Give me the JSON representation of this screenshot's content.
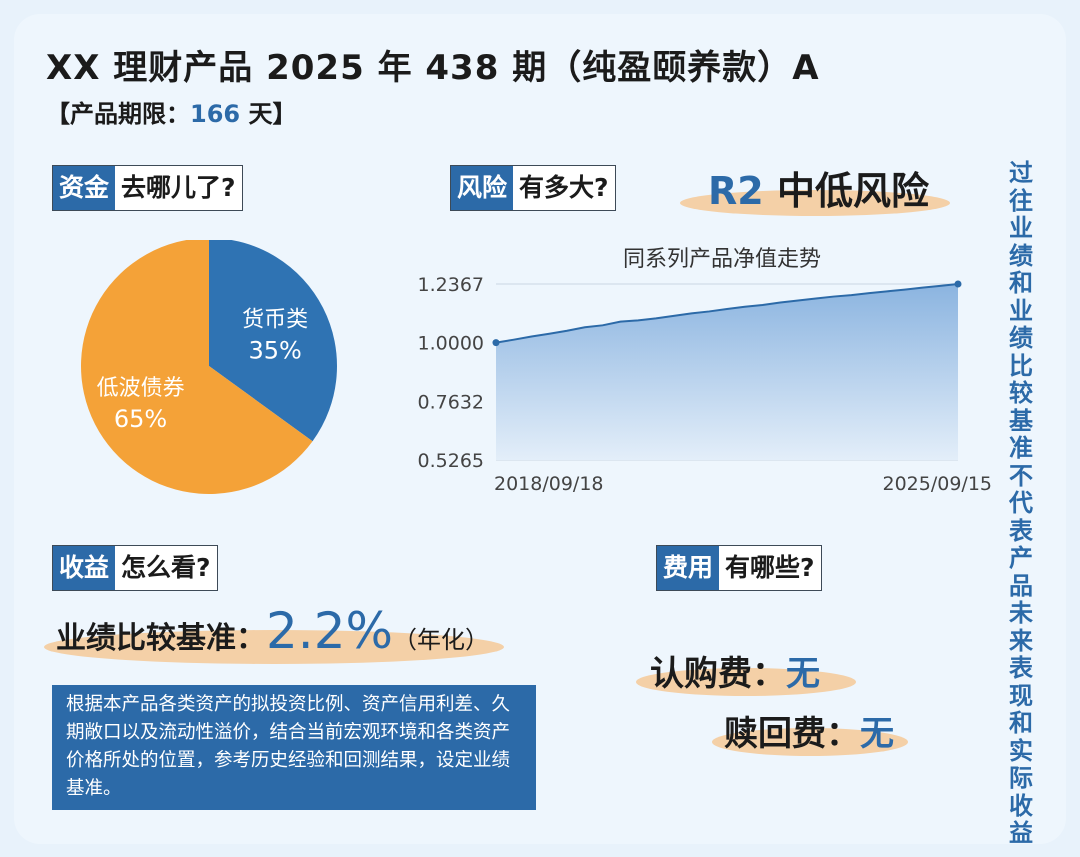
{
  "header": {
    "title": "XX 理财产品 2025 年 438 期（纯盈颐养款）A",
    "term_prefix": "【产品期限：",
    "term_value": "166",
    "term_suffix": "天】"
  },
  "sections": {
    "funds": {
      "tag": "资金",
      "question": "去哪儿了?"
    },
    "risk": {
      "tag": "风险",
      "question": "有多大?",
      "level": "R2",
      "level_text": "中低风险"
    },
    "returns": {
      "tag": "收益",
      "question": "怎么看?"
    },
    "fees": {
      "tag": "费用",
      "question": "有哪些?"
    }
  },
  "side_note": "过往业绩和业绩比较基准不代表产品未来表现和实际收益",
  "benchmark": {
    "label": "业绩比较基准：",
    "value": "2.2%",
    "unit": "（年化）",
    "note": "根据本产品各类资产的拟投资比例、资产信用利差、久期敞口以及流动性溢价，结合当前宏观环境和各类资产价格所处的位置，参考历史经验和回测结果，设定业绩基准。"
  },
  "fees": [
    {
      "label": "认购费：",
      "value": "无"
    },
    {
      "label": "赎回费：",
      "value": "无"
    }
  ],
  "colors": {
    "blue": "#2c6aa8",
    "pie_blue": "#2f73b3",
    "orange": "#f4a238",
    "area_top": "#8bb4e0",
    "area_bottom": "#e3eef9"
  },
  "chart_data": [
    {
      "type": "pie",
      "categories": [
        "货币类",
        "低波债券"
      ],
      "values": [
        35,
        65
      ],
      "labels": [
        "35%",
        "65%"
      ],
      "colors": [
        "#2f73b3",
        "#f4a238"
      ]
    },
    {
      "type": "area",
      "title": "同系列产品净值走势",
      "x_start_label": "2018/09/18",
      "x_end_label": "2025/09/15",
      "yticks": [
        "1.2367",
        "1.0000",
        "0.7632",
        "0.5265"
      ],
      "ylim": [
        0.5265,
        1.2367
      ],
      "start_value": 1.0,
      "end_value": 1.2367,
      "values": [
        1.0,
        1.012,
        1.025,
        1.036,
        1.048,
        1.062,
        1.07,
        1.085,
        1.09,
        1.098,
        1.108,
        1.118,
        1.126,
        1.136,
        1.145,
        1.152,
        1.162,
        1.17,
        1.178,
        1.186,
        1.192,
        1.2,
        1.207,
        1.214,
        1.222,
        1.229,
        1.2367
      ]
    }
  ]
}
